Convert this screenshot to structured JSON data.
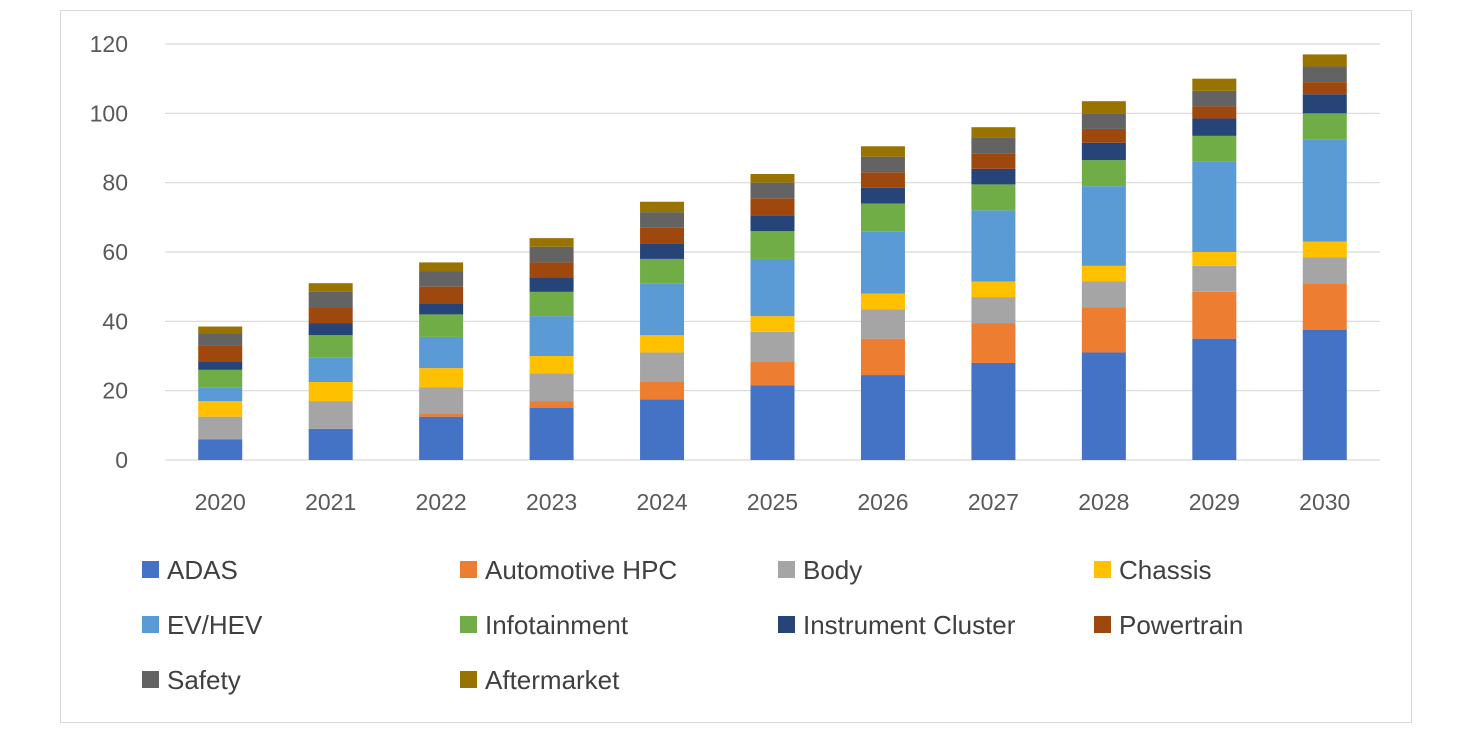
{
  "chart_data": {
    "type": "bar",
    "stacked": true,
    "title": "",
    "xlabel": "",
    "ylabel": "",
    "categories": [
      "2020",
      "2021",
      "2022",
      "2023",
      "2024",
      "2025",
      "2026",
      "2027",
      "2028",
      "2029",
      "2030"
    ],
    "ylim": [
      0,
      120
    ],
    "yticks": [
      0,
      20,
      40,
      60,
      80,
      100,
      120
    ],
    "grid": true,
    "legend_position": "bottom",
    "series": [
      {
        "name": "ADAS",
        "color": "#4472C4",
        "values": [
          6,
          9,
          12.5,
          15,
          17.5,
          21.5,
          24.5,
          28,
          31,
          35,
          37.5
        ]
      },
      {
        "name": "Automotive HPC",
        "color": "#ED7D31",
        "values": [
          0,
          0,
          1,
          2,
          5,
          7,
          10.5,
          11.5,
          13,
          13.5,
          13.5
        ]
      },
      {
        "name": "Body",
        "color": "#A5A5A5",
        "values": [
          6.5,
          8,
          7.5,
          8,
          8.5,
          8.5,
          8.5,
          7.5,
          7.5,
          7.5,
          7.5
        ]
      },
      {
        "name": "Chassis",
        "color": "#FFC000",
        "values": [
          4.5,
          5.5,
          5.5,
          5,
          5,
          4.5,
          4.5,
          4.5,
          4.5,
          4,
          4.5
        ]
      },
      {
        "name": "EV/HEV",
        "color": "#5B9BD5",
        "values": [
          4,
          7,
          9,
          11.5,
          15,
          16.5,
          18,
          20.5,
          23,
          26,
          29.5
        ]
      },
      {
        "name": "Infotainment",
        "color": "#70AD47",
        "values": [
          5,
          6.5,
          6.5,
          7,
          7,
          8,
          8,
          7.5,
          7.5,
          7.5,
          7.5
        ]
      },
      {
        "name": "Instrument Cluster",
        "color": "#264478",
        "values": [
          2.5,
          3.5,
          3,
          4,
          4.5,
          4.5,
          4.5,
          4.5,
          5,
          5,
          5.5
        ]
      },
      {
        "name": "Powertrain",
        "color": "#9E480E",
        "values": [
          4.5,
          4.5,
          5,
          4.5,
          4.5,
          5,
          4.5,
          4.5,
          4,
          3.5,
          3.5
        ]
      },
      {
        "name": "Safety",
        "color": "#636363",
        "values": [
          3.5,
          4.5,
          4.5,
          4.5,
          4.5,
          4.5,
          4.5,
          4.5,
          4.5,
          4.5,
          4.5
        ]
      },
      {
        "name": "Aftermarket",
        "color": "#997300",
        "values": [
          2,
          2.5,
          2.5,
          2.5,
          3,
          2.5,
          3,
          3,
          3.5,
          3.5,
          3.5
        ]
      }
    ]
  }
}
